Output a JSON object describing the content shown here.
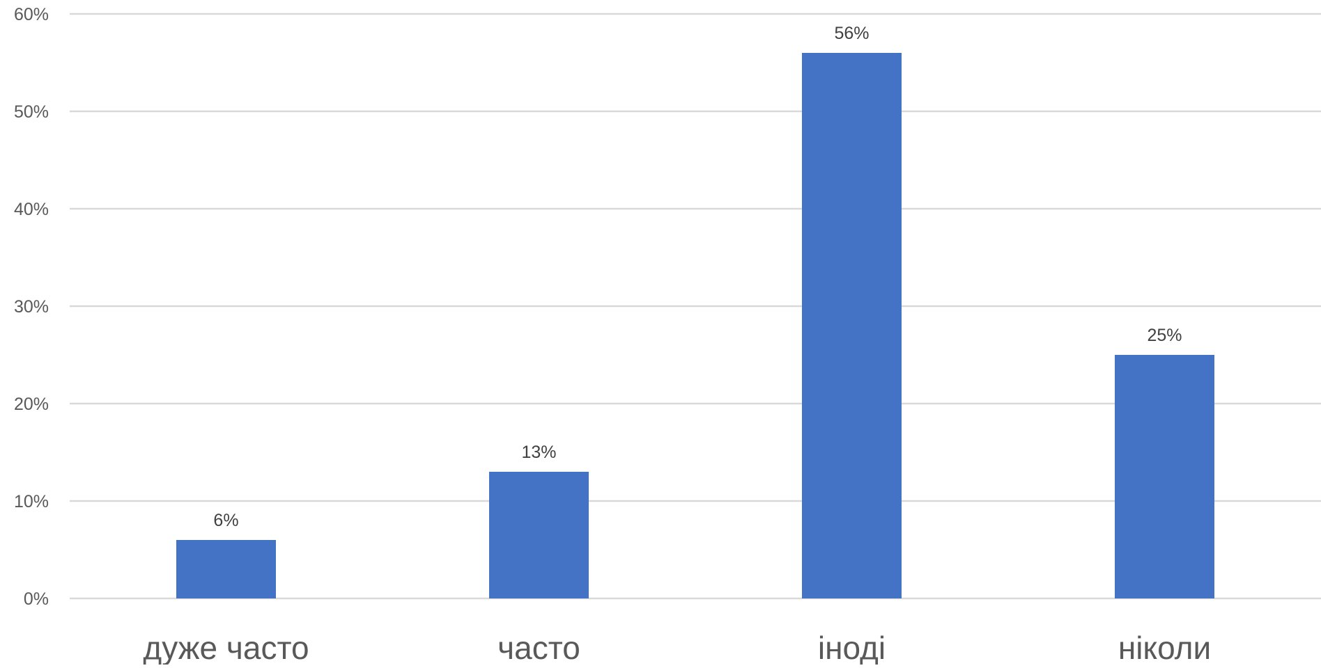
{
  "chart_data": {
    "type": "bar",
    "categories": [
      "дуже часто",
      "часто",
      "іноді",
      "ніколи"
    ],
    "values": [
      6,
      13,
      56,
      25
    ],
    "data_labels": [
      "6%",
      "13%",
      "56%",
      "25%"
    ],
    "y_ticks": [
      0,
      10,
      20,
      30,
      40,
      50,
      60
    ],
    "y_tick_labels": [
      "0%",
      "10%",
      "20%",
      "30%",
      "40%",
      "50%",
      "60%"
    ],
    "ylim": [
      0,
      60
    ],
    "grid": true,
    "legend": "none",
    "title": "",
    "xlabel": "",
    "ylabel": "",
    "colors": {
      "bar": "#4472c4",
      "grid": "#d9d9d9",
      "tick_text": "#595959",
      "label_text": "#404040"
    }
  }
}
